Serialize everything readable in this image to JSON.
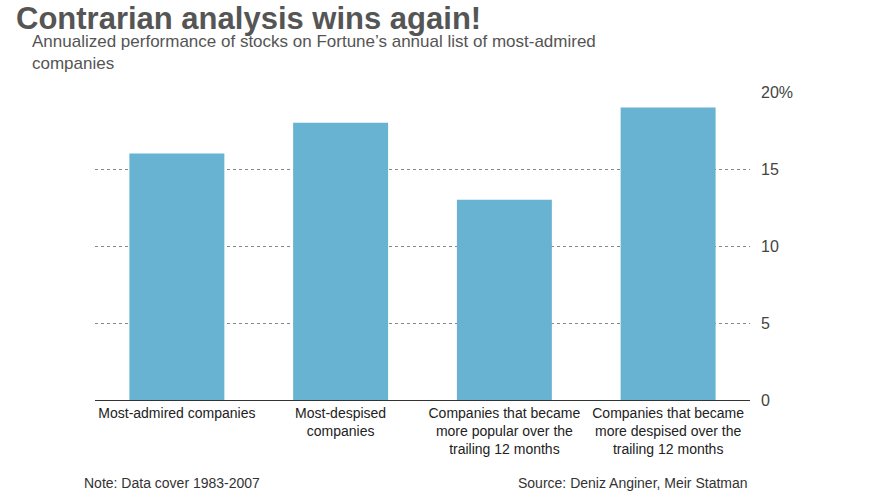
{
  "chart_data": {
    "type": "bar",
    "title": "Contrarian analysis wins again!",
    "subtitle": "Annualized performance of stocks on Fortune’s annual list of most-admired companies",
    "categories": [
      "Most-admired companies",
      "Most-despised companies",
      "Companies that became more popular over the trailing 12 months",
      "Companies that became more despised over the trailing 12 months"
    ],
    "values": [
      16,
      18,
      13,
      19
    ],
    "color": "#67b3d1",
    "ylim": [
      0,
      20
    ],
    "yticks": [
      0,
      5,
      10,
      15,
      {
        "value": 20,
        "label": "20%"
      }
    ],
    "grid": true,
    "annotations": [
      "Note: Data cover 1983-2007",
      "Source: Deniz Anginer, Meir Statman"
    ]
  }
}
